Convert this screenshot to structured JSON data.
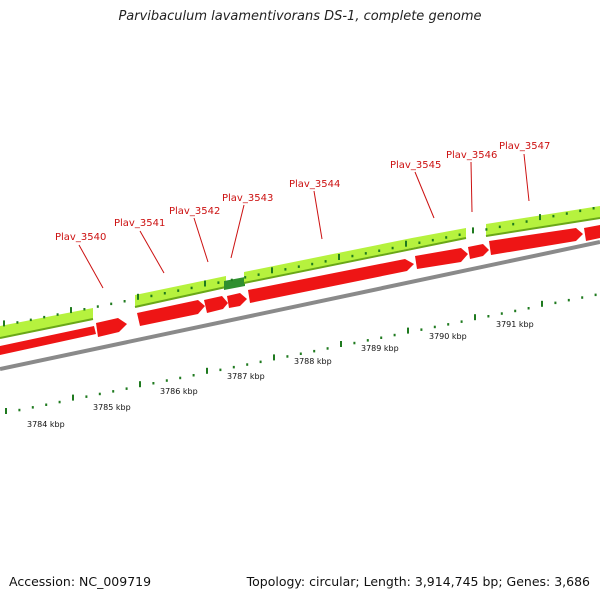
{
  "title": "Parvibaculum lavamentivorans DS-1, complete genome",
  "footer": {
    "accession": "Accession: NC_009719",
    "stats": "Topology: circular; Length: 3,914,745 bp; Genes: 3,686"
  },
  "colors": {
    "cds_forward_strand": "#aaf23a",
    "cds_reverse_strand": "#ee1111",
    "highlighted_gene": "#2f8f2f",
    "backbone": "#888888",
    "ticks": "#1f7a1f",
    "gene_label": "#cc1111"
  },
  "genes": [
    {
      "name": "Plav_3540"
    },
    {
      "name": "Plav_3541"
    },
    {
      "name": "Plav_3542"
    },
    {
      "name": "Plav_3543"
    },
    {
      "name": "Plav_3544"
    },
    {
      "name": "Plav_3545"
    },
    {
      "name": "Plav_3546"
    },
    {
      "name": "Plav_3547"
    }
  ],
  "scale_labels": [
    "3784 kbp",
    "3785 kbp",
    "3786 kbp",
    "3787 kbp",
    "3788 kbp",
    "3789 kbp",
    "3790 kbp",
    "3791 kbp"
  ]
}
